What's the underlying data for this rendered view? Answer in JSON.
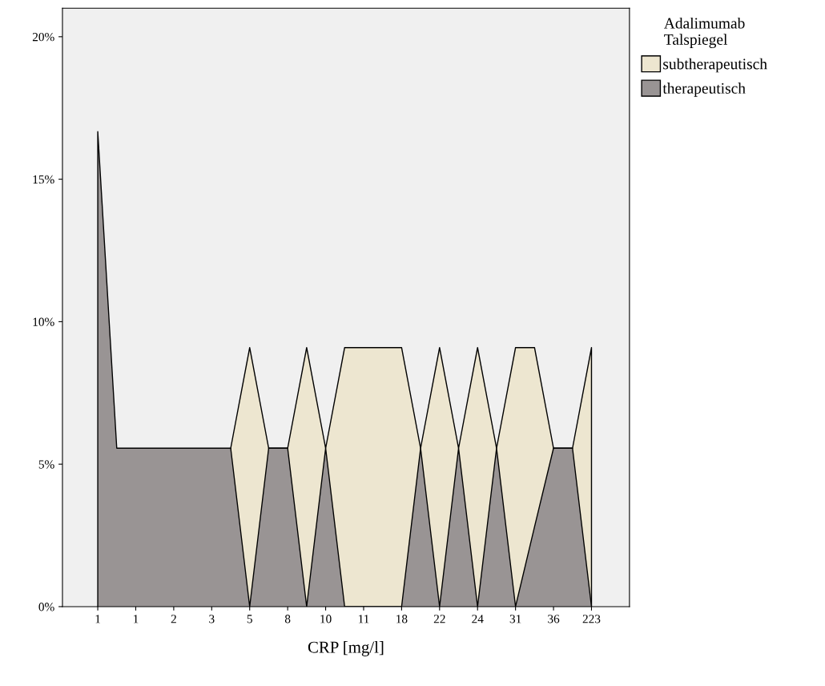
{
  "chart_data": {
    "type": "area",
    "xlabel": "CRP [mg/l]",
    "legend_title": "Adalimumab\nTalspiegel",
    "categories": [
      "1",
      null,
      "1",
      null,
      "2",
      null,
      "3",
      null,
      "5",
      null,
      "8",
      null,
      "10",
      null,
      "11",
      null,
      "18",
      null,
      "22",
      null,
      "24",
      null,
      "31",
      null,
      "36",
      null,
      "223"
    ],
    "series": [
      {
        "name": "subtherapeutisch",
        "color": "#ede6d0",
        "values": [
          0,
          0,
          0,
          0,
          0,
          0,
          0,
          5.56,
          9.09,
          5.56,
          5.56,
          9.09,
          5.56,
          9.09,
          9.09,
          9.09,
          9.09,
          5.56,
          9.09,
          5.56,
          9.09,
          5.56,
          9.09,
          9.09,
          5.56,
          5.56,
          9.09
        ]
      },
      {
        "name": "therapeutisch",
        "color": "#999494",
        "values": [
          16.67,
          5.56,
          5.56,
          5.56,
          5.56,
          5.56,
          5.56,
          5.56,
          0,
          5.56,
          5.56,
          0,
          5.56,
          0,
          0,
          0,
          0,
          5.56,
          0,
          5.56,
          0,
          5.56,
          0,
          2.8,
          5.56,
          5.56,
          0
        ]
      }
    ],
    "ylim": [
      0,
      21
    ],
    "yticks": [
      {
        "value": 0,
        "label": "0%"
      },
      {
        "value": 5,
        "label": "5%"
      },
      {
        "value": 10,
        "label": "10%"
      },
      {
        "value": 15,
        "label": "15%"
      },
      {
        "value": 20,
        "label": "20%"
      }
    ],
    "grid": false,
    "legend": "top right"
  }
}
